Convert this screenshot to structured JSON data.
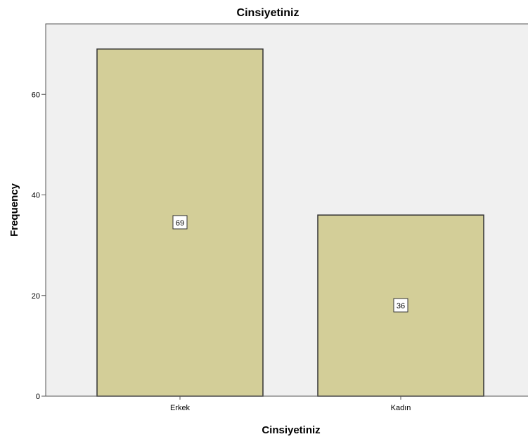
{
  "chart_data": {
    "type": "bar",
    "title": "Cinsiyetiniz",
    "xlabel": "Cinsiyetiniz",
    "ylabel": "Frequency",
    "categories": [
      "Erkek",
      "Kadın"
    ],
    "values": [
      69,
      36
    ],
    "data_labels": [
      "69",
      "36"
    ],
    "ylim": [
      0,
      74
    ],
    "yticks": [
      0,
      20,
      40,
      60
    ],
    "ytick_labels": [
      "0",
      "20",
      "40",
      "60"
    ],
    "grid": false,
    "colors": {
      "plot_background": "#f0f0f0",
      "bar_fill": "#d3ce98",
      "bar_stroke": "#333333"
    }
  }
}
